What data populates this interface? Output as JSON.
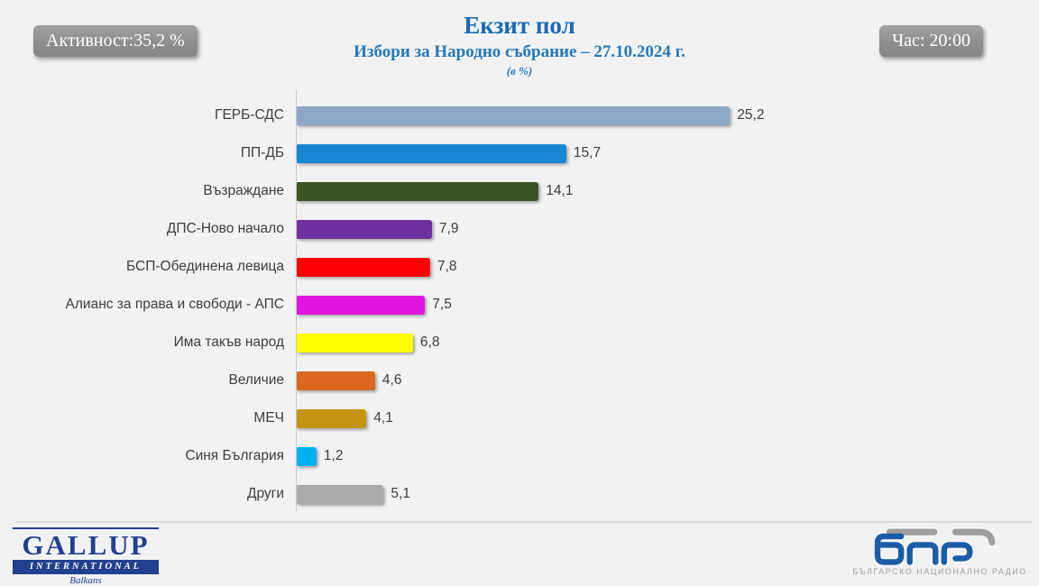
{
  "header": {
    "activity_badge": "Активност:35,2 %",
    "time_badge": "Час: 20:00",
    "title": "Екзит пол",
    "subtitle": "Избори за Народно събрание – 27.10.2024 г.",
    "unit_note": "(в %)"
  },
  "chart_data": {
    "type": "bar",
    "orientation": "horizontal",
    "title": "Екзит пол",
    "subtitle": "Избори за Народно събрание – 27.10.2024 г.",
    "unit": "в %",
    "grid": false,
    "xlim": [
      0,
      26
    ],
    "value_labels_position": "end",
    "categories": [
      "ГЕРБ-СДС",
      "ПП-ДБ",
      "Възраждане",
      "ДПС-Ново начало",
      "БСП-Обединена левица",
      "Алианс за права и свободи - АПС",
      "Има такъв народ",
      "Величие",
      "МЕЧ",
      "Синя България",
      "Други"
    ],
    "values": [
      25.2,
      15.7,
      14.1,
      7.9,
      7.8,
      7.5,
      6.8,
      4.6,
      4.1,
      1.2,
      5.1
    ],
    "value_labels": [
      "25,2",
      "15,7",
      "14,1",
      "7,9",
      "7,8",
      "7,5",
      "6,8",
      "4,6",
      "4,1",
      "1,2",
      "5,1"
    ],
    "bar_colors": [
      "#8FA7C6",
      "#1986D4",
      "#3A5323",
      "#7030A0",
      "#FF0000",
      "#DE16DE",
      "#FFFF00",
      "#D9671F",
      "#C4930F",
      "#00B0F0",
      "#ABABAB"
    ]
  },
  "footer": {
    "gallup": {
      "name": "GALLUP",
      "sub": "INTERNATIONAL",
      "region": "Balkans"
    },
    "bnr": {
      "mark": "бнр",
      "caption": "БЪЛГАРСКО НАЦИОНАЛНО РАДИО"
    }
  },
  "palette": {
    "background": "#F2F2F3",
    "title_blue": "#1A6AB4",
    "subtitle_blue": "#2679BC",
    "badge_text": "#FFFFFF",
    "badge_bg": "#8E8E8E",
    "text_dark": "#3D3D3D",
    "axis_line": "#C8C8C8",
    "divider": "#DBDBDB",
    "gallup_navy": "#21418F",
    "bnr_blue": "#1B5CA6",
    "bnr_gray": "#9E9E9E"
  }
}
